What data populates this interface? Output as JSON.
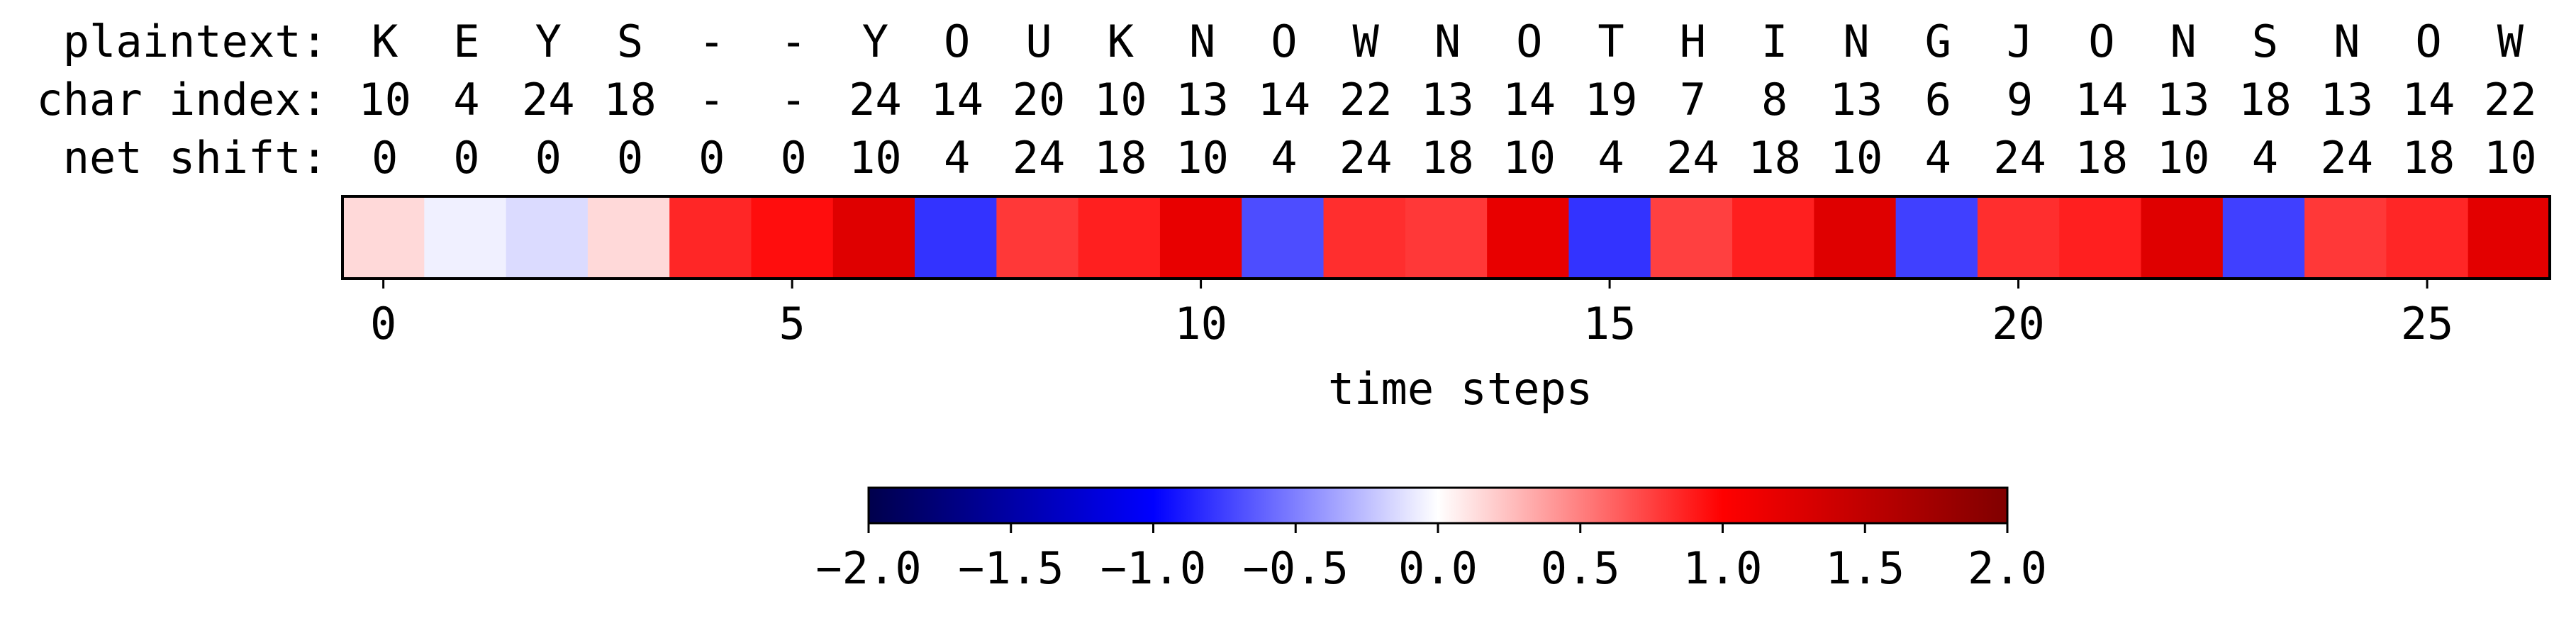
{
  "chart_data": {
    "type": "heatmap",
    "row_labels": [
      "plaintext:",
      "char index:",
      "net shift:"
    ],
    "plaintext": [
      "K",
      "E",
      "Y",
      "S",
      "-",
      "-",
      "Y",
      "O",
      "U",
      "K",
      "N",
      "O",
      "W",
      "N",
      "O",
      "T",
      "H",
      "I",
      "N",
      "G",
      "J",
      "O",
      "N",
      "S",
      "N",
      "O",
      "W"
    ],
    "char_index": [
      "10",
      "4",
      "24",
      "18",
      "-",
      "-",
      "24",
      "14",
      "20",
      "10",
      "13",
      "14",
      "22",
      "13",
      "14",
      "19",
      "7",
      "8",
      "13",
      "6",
      "9",
      "14",
      "13",
      "18",
      "13",
      "14",
      "22"
    ],
    "net_shift": [
      "0",
      "0",
      "0",
      "0",
      "0",
      "0",
      "10",
      "4",
      "24",
      "18",
      "10",
      "4",
      "24",
      "18",
      "10",
      "4",
      "24",
      "18",
      "10",
      "4",
      "24",
      "18",
      "10",
      "4",
      "24",
      "18",
      "10"
    ],
    "values": [
      0.15,
      -0.06,
      -0.14,
      0.15,
      0.85,
      0.95,
      1.25,
      -0.8,
      0.78,
      0.88,
      1.18,
      -0.7,
      0.82,
      0.78,
      1.18,
      -0.8,
      0.75,
      0.88,
      1.25,
      -0.75,
      0.82,
      0.88,
      1.25,
      -0.75,
      0.78,
      0.85,
      1.22
    ],
    "x_ticks": [
      0,
      5,
      10,
      15,
      20,
      25
    ],
    "xlabel": "time steps",
    "colorbar": {
      "vmin": -2.0,
      "vmax": 2.0,
      "ticks": [
        "−2.0",
        "−1.5",
        "−1.0",
        "−0.5",
        "0.0",
        "0.5",
        "1.0",
        "1.5",
        "2.0"
      ],
      "tick_values": [
        -2.0,
        -1.5,
        -1.0,
        -0.5,
        0.0,
        0.5,
        1.0,
        1.5,
        2.0
      ],
      "colormap": "seismic"
    }
  }
}
